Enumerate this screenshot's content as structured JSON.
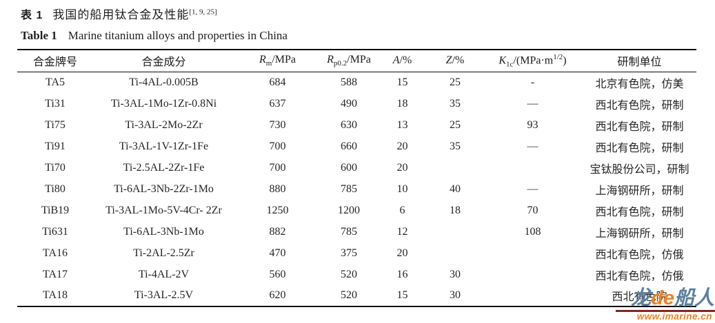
{
  "titles": {
    "cn": {
      "label": "表 1",
      "text": "我国的船用钛合金及性能",
      "refs": "[1, 9, 25]"
    },
    "en": {
      "label": "Table 1",
      "text": "Marine titanium alloys and properties in China"
    }
  },
  "table": {
    "headers": {
      "grade": "合金牌号",
      "composition": "合金成分",
      "rm": {
        "sym": "R",
        "sub": "m",
        "unit": "/MPa"
      },
      "rp": {
        "sym": "R",
        "sub": "p0.2",
        "unit": "/MPa"
      },
      "a": {
        "sym": "A",
        "unit": "/%"
      },
      "z": {
        "sym": "Z",
        "unit": "/%"
      },
      "k1c": {
        "sym": "K",
        "sub": "1c",
        "unit": "/(MPa·m",
        "sup": "1/2",
        "close": ")"
      },
      "org": "研制单位"
    },
    "rows": [
      {
        "grade": "TA5",
        "composition": "Ti-4AL-0.005B",
        "rm": "684",
        "rp": "588",
        "a": "15",
        "z": "25",
        "k1c": "-",
        "org": "北京有色院，仿美"
      },
      {
        "grade": "Ti31",
        "composition": "Ti-3AL-1Mo-1Zr-0.8Ni",
        "rm": "637",
        "rp": "490",
        "a": "18",
        "z": "35",
        "k1c": "—",
        "org": "西北有色院，研制"
      },
      {
        "grade": "Ti75",
        "composition": "Ti-3AL-2Mo-2Zr",
        "rm": "730",
        "rp": "630",
        "a": "13",
        "z": "25",
        "k1c": "93",
        "org": "西北有色院，研制"
      },
      {
        "grade": "Ti91",
        "composition": "Ti-3AL-1V-1Zr-1Fe",
        "rm": "700",
        "rp": "660",
        "a": "20",
        "z": "35",
        "k1c": "—",
        "org": "西北有色院，研制"
      },
      {
        "grade": "Ti70",
        "composition": "Ti-2.5AL-2Zr-1Fe",
        "rm": "700",
        "rp": "600",
        "a": "20",
        "z": "",
        "k1c": "",
        "org": "宝钛股份公司，研制"
      },
      {
        "grade": "Ti80",
        "composition": "Ti-6AL-3Nb-2Zr-1Mo",
        "rm": "880",
        "rp": "785",
        "a": "10",
        "z": "40",
        "k1c": "—",
        "org": "上海钢研所，研制"
      },
      {
        "grade": "TiB19",
        "composition": "Ti-3AL-1Mo-5V-4Cr- 2Zr",
        "rm": "1250",
        "rp": "1200",
        "a": "6",
        "z": "18",
        "k1c": "70",
        "org": "西北有色院，研制"
      },
      {
        "grade": "Ti631",
        "composition": "Ti-6AL-3Nb-1Mo",
        "rm": "882",
        "rp": "785",
        "a": "12",
        "z": "",
        "k1c": "108",
        "org": "上海钢研所，研制"
      },
      {
        "grade": "TA16",
        "composition": "Ti-2AL-2.5Zr",
        "rm": "470",
        "rp": "375",
        "a": "20",
        "z": "",
        "k1c": "",
        "org": "西北有色院，仿俄"
      },
      {
        "grade": "TA17",
        "composition": "Ti-4AL-2V",
        "rm": "560",
        "rp": "520",
        "a": "16",
        "z": "30",
        "k1c": "",
        "org": "西北有色院，仿俄"
      },
      {
        "grade": "TA18",
        "composition": "Ti-3AL-2.5V",
        "rm": "620",
        "rp": "520",
        "a": "15",
        "z": "30",
        "k1c": "",
        "org": "西北有色院"
      }
    ]
  },
  "watermark": {
    "logo_part1": "龙",
    "logo_part2": "de",
    "logo_part3": "船人",
    "url": "www.imarine.cn",
    "colors": {
      "blue": "#5b7f9f",
      "orange": "#ee8220",
      "line": "#7b2a1e"
    }
  }
}
